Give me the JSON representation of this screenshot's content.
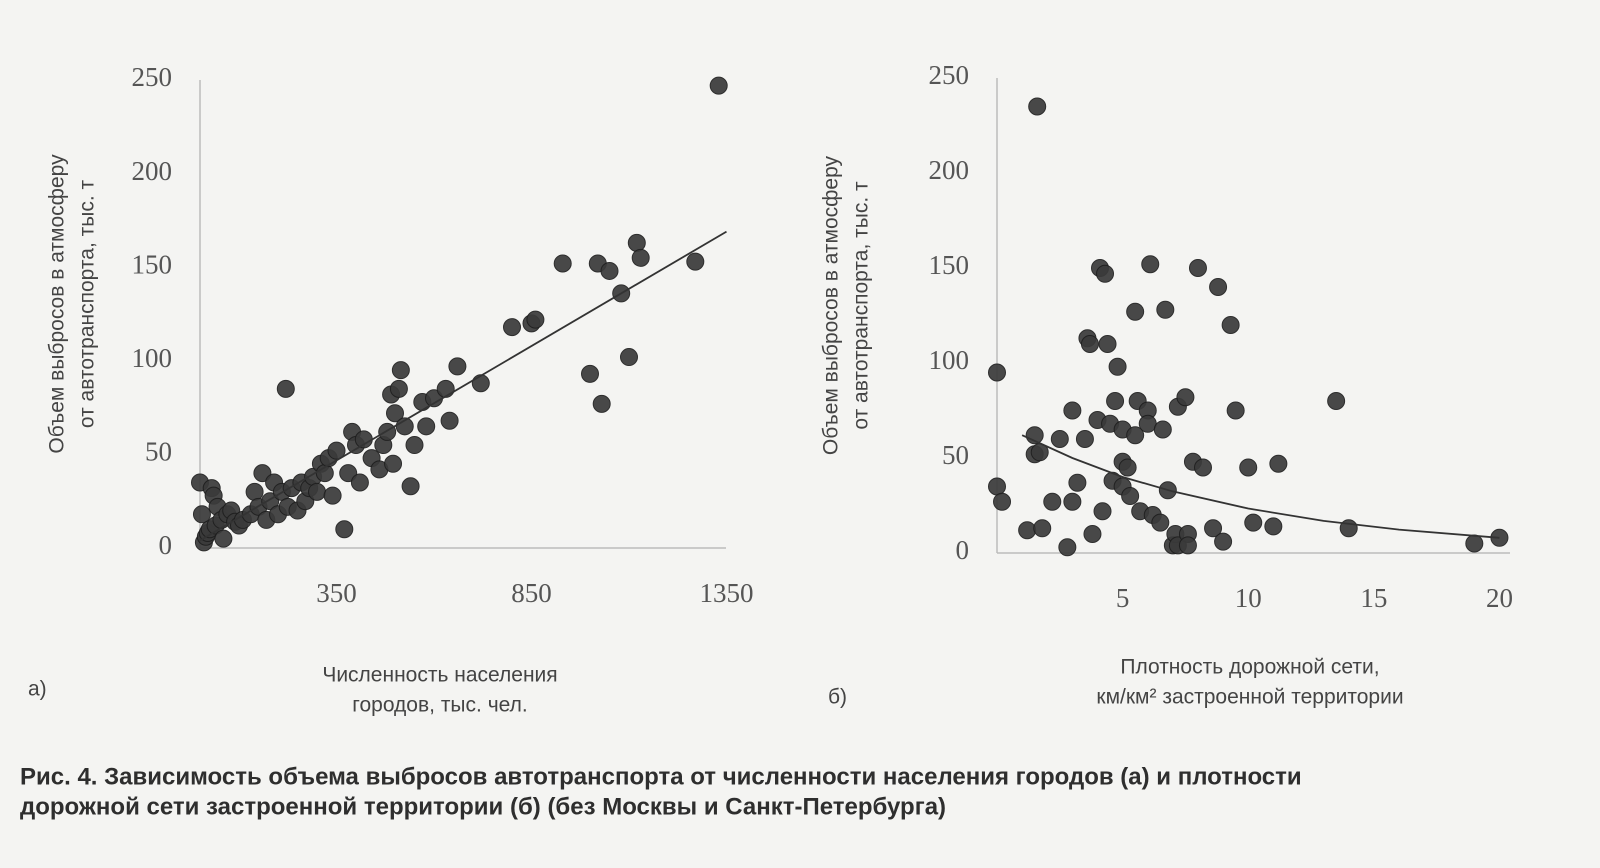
{
  "chart_data": [
    {
      "type": "scatter",
      "label": "а)",
      "y_label": [
        "Объем выбросов в атмосферу",
        "от автотранспорта, тыс. т"
      ],
      "x_label": [
        "Численность населения",
        "городов, тыс. чел."
      ],
      "xlim": [
        0,
        1400
      ],
      "ylim": [
        0,
        250
      ],
      "xticks": [
        350,
        850,
        1350
      ],
      "yticks": [
        0,
        50,
        100,
        150,
        200,
        250
      ],
      "color": "#3a3a3a",
      "x": [
        0,
        5,
        10,
        15,
        20,
        25,
        30,
        35,
        40,
        45,
        55,
        60,
        70,
        80,
        90,
        100,
        110,
        130,
        140,
        150,
        160,
        170,
        180,
        190,
        200,
        210,
        220,
        225,
        235,
        250,
        260,
        270,
        280,
        290,
        300,
        310,
        320,
        330,
        340,
        350,
        370,
        380,
        390,
        400,
        410,
        420,
        440,
        460,
        470,
        480,
        490,
        495,
        500,
        510,
        515,
        525,
        540,
        550,
        570,
        580,
        600,
        630,
        640,
        660,
        720,
        800,
        850,
        860,
        930,
        1000,
        1020,
        1030,
        1050,
        1080,
        1100,
        1120,
        1130,
        1270,
        1330
      ],
      "values": [
        35,
        18,
        3,
        6,
        8,
        10,
        32,
        28,
        12,
        22,
        15,
        5,
        18,
        20,
        14,
        12,
        15,
        18,
        30,
        22,
        40,
        15,
        25,
        35,
        18,
        30,
        85,
        22,
        32,
        20,
        35,
        25,
        32,
        38,
        30,
        45,
        40,
        48,
        28,
        52,
        10,
        40,
        62,
        55,
        35,
        58,
        48,
        42,
        55,
        62,
        82,
        45,
        72,
        85,
        95,
        65,
        33,
        55,
        78,
        65,
        80,
        85,
        68,
        97,
        88,
        118,
        120,
        122,
        152,
        93,
        152,
        77,
        148,
        136,
        102,
        163,
        155,
        153,
        247
      ],
      "trendline": {
        "x": [
          0,
          1350
        ],
        "y": [
          4,
          169
        ]
      }
    },
    {
      "type": "scatter",
      "label": "б)",
      "y_label": [
        "Объем выбросов в атмосферу",
        "от автотранспорта, тыс. т"
      ],
      "x_label": [
        "Плотность дорожной сети,",
        "км/км² застроенной территории"
      ],
      "xlim": [
        0,
        20.5
      ],
      "ylim": [
        0,
        250
      ],
      "xticks": [
        5,
        10,
        15,
        20
      ],
      "yticks": [
        0,
        50,
        100,
        150,
        200,
        250
      ],
      "color": "#3a3a3a",
      "x": [
        0,
        0,
        0.2,
        1.2,
        1.5,
        1.5,
        1.6,
        1.8,
        2.2,
        1.7,
        2.5,
        2.8,
        3,
        3.2,
        3,
        3.5,
        3.6,
        3.7,
        3.8,
        4,
        4.1,
        4.3,
        4.2,
        4.4,
        4.5,
        4.6,
        4.7,
        4.8,
        5,
        5,
        5,
        5.2,
        5.3,
        5.5,
        5.5,
        5.6,
        5.7,
        6,
        6,
        6.1,
        6.2,
        6.5,
        6.6,
        6.7,
        6.8,
        7,
        7.1,
        7.2,
        7.2,
        7.5,
        7.6,
        7.6,
        7.8,
        8,
        8.2,
        8.6,
        8.8,
        9,
        9.3,
        9.5,
        10,
        10.2,
        11,
        11.2,
        13.5,
        14,
        19,
        20
      ],
      "values": [
        95,
        35,
        27,
        12,
        52,
        62,
        235,
        13,
        27,
        53,
        60,
        3,
        75,
        37,
        27,
        60,
        113,
        110,
        10,
        70,
        150,
        147,
        22,
        110,
        68,
        38,
        80,
        98,
        65,
        48,
        35,
        45,
        30,
        62,
        127,
        80,
        22,
        75,
        68,
        152,
        20,
        16,
        65,
        128,
        33,
        4,
        10,
        4,
        77,
        82,
        10,
        4,
        48,
        150,
        45,
        13,
        140,
        6,
        120,
        75,
        45,
        16,
        14,
        47,
        80,
        13,
        5,
        8
      ],
      "trendline": {
        "x": [
          1,
          3,
          5,
          7,
          10,
          13,
          16,
          20
        ],
        "y": [
          62,
          50,
          40,
          32.4,
          23.4,
          16.9,
          12.3,
          8
        ]
      }
    }
  ],
  "caption": [
    "Рис. 4. Зависимость объема выбросов автотранспорта от численности населения городов (а) и плотности",
    "дорожной сети застроенной территории (б) (без Москвы и Санкт-Петербурга)"
  ]
}
